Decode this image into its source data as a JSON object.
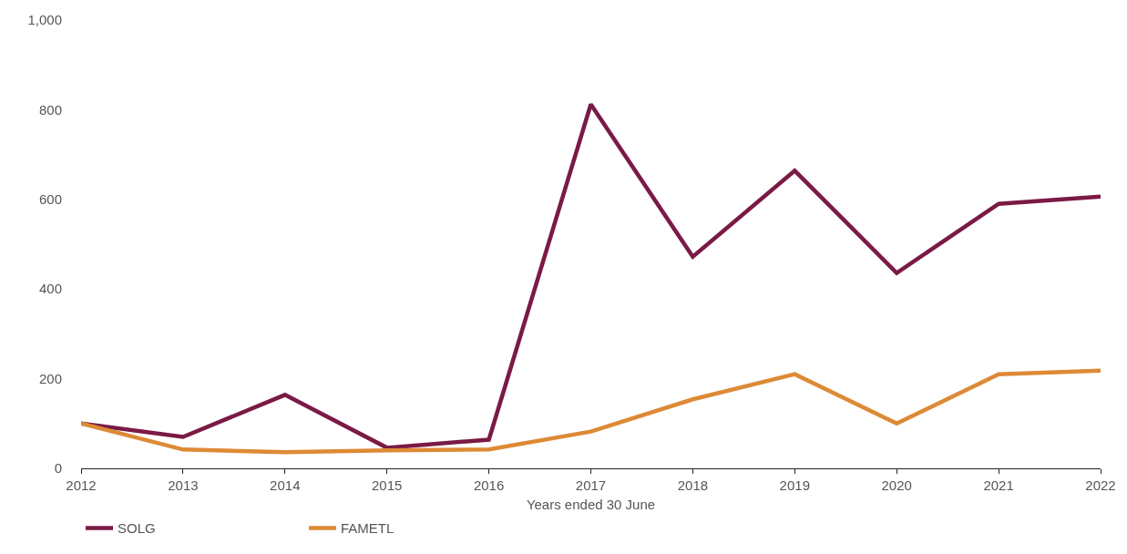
{
  "chart_data": {
    "type": "line",
    "xlabel": "Years ended 30 June",
    "categories": [
      "2012",
      "2013",
      "2014",
      "2015",
      "2016",
      "2017",
      "2018",
      "2019",
      "2020",
      "2021",
      "2022"
    ],
    "series": [
      {
        "name": "SOLG",
        "color": "#7a1a45",
        "values": [
          100,
          70,
          164,
          46,
          64,
          812,
          472,
          664,
          436,
          590,
          606
        ]
      },
      {
        "name": "FAMETL",
        "color": "#dd8a36",
        "values": [
          100,
          42,
          36,
          40,
          42,
          82,
          154,
          210,
          100,
          210,
          218
        ]
      }
    ],
    "ylim": [
      0,
      1000
    ],
    "yticks": [
      0,
      200,
      400,
      600,
      800,
      {
        "value": 1000,
        "label": "1,000"
      }
    ],
    "grid": false,
    "legend": "bottom left",
    "marker": "none",
    "line_style": "solid"
  }
}
